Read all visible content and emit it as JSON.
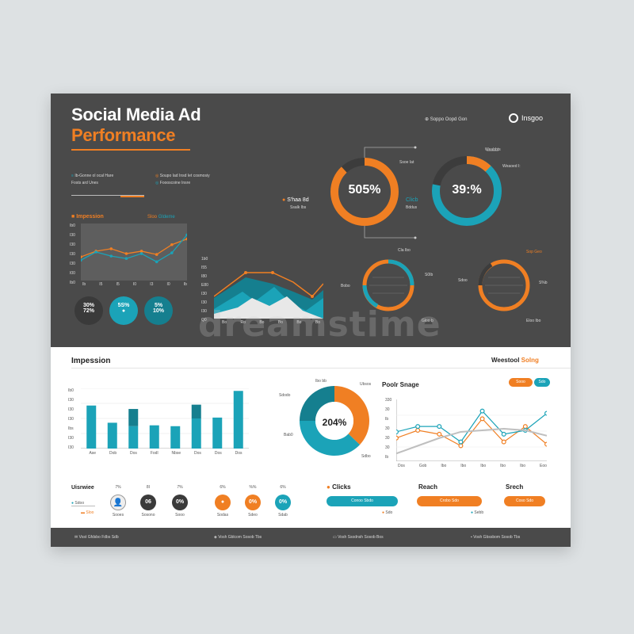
{
  "header": {
    "title_line1": "Social Media Ad",
    "title_line2": "Performance",
    "desc_left_1": "Ib-Gonne ol ocal Hare",
    "desc_left_2": "Fosts ard Unes",
    "desc_right_1": "Soupo Iad Insd Iet cosmosiy",
    "desc_right_2": "Foooscoine Insre",
    "top_link": "Soppo Oopd Gon",
    "logo_text": "Insgoo"
  },
  "top_left_chart": {
    "title": "Impession",
    "legend_a": "Sloo",
    "legend_b": "Gldeme",
    "y_ticks": [
      "Ib0",
      "I30",
      "I30",
      "I30",
      "I30",
      "I00",
      "Ib0"
    ],
    "x_ticks": [
      "Ib",
      "I5",
      "I5",
      "I0",
      "I3",
      "I0",
      "Ib"
    ],
    "chart_data": {
      "type": "line",
      "series": [
        {
          "name": "Sloo",
          "color": "#f07f23",
          "values": [
            29,
            36,
            39,
            33,
            36,
            32,
            44,
            51
          ]
        },
        {
          "name": "Gldeme",
          "color": "#1ba3b8",
          "values": [
            25,
            35,
            30,
            27,
            33,
            23,
            34,
            56
          ]
        }
      ],
      "ylim": [
        0,
        70
      ]
    }
  },
  "stats_circles": [
    {
      "line1": "30%",
      "line2": "72%",
      "color": "#3a3a3a"
    },
    {
      "line1": "5S%",
      "line2": "●",
      "color": "#1ba3b8"
    },
    {
      "line1": "5%",
      "line2": "10%",
      "color": "#1b7f8c"
    }
  ],
  "area_chart": {
    "y_ticks": [
      "1b0",
      "I55",
      "I80",
      "E80",
      "I30",
      "I30",
      "I30",
      "Q0"
    ],
    "x_ticks": [
      "Bo",
      "Ro",
      "Bo",
      "Bo",
      "Bo",
      "Bo"
    ]
  },
  "donut_a": {
    "value": "505%",
    "label_left": "S'haa 8d",
    "label_left_sub": "Ssalk Ibs",
    "label_top": "Ssoe Iat",
    "label_right": "Clicb",
    "label_right_sub": "Bddus",
    "color": "#f07f23",
    "fraction": 0.88
  },
  "donut_b": {
    "value": "39:%",
    "label_top": "Weabbts",
    "label_right": "Weaoed I:",
    "color": "#1ba3b8",
    "fraction": 0.78
  },
  "ring_c": {
    "label_top": "Cla Ibo",
    "label_left": "Bobo",
    "label_right": "S0Ib",
    "label_bottom": "Gloo b",
    "color": "#f07f23"
  },
  "ring_d": {
    "label_top": "Sop Geo",
    "label_left": "Sdoo",
    "label_right": "S%b",
    "label_bottom": "Eloo Ibo",
    "color": "#f07f23"
  },
  "watermark": "dreamstime",
  "impression_section": {
    "title": "Impession",
    "right_title": "Weestool",
    "right_title_accent": "Solng",
    "y_ticks": [
      "Ib0",
      "I30",
      "I30",
      "I30",
      "Ibs",
      "I30",
      "I30"
    ],
    "x_ticks": [
      "Ase",
      "Dob",
      "Dos",
      "Fodl",
      "Nbse",
      "Dos",
      "Dos",
      "Dos"
    ],
    "chart_data": {
      "type": "bar",
      "categories": [
        "Ase",
        "Dob",
        "Dos",
        "Fodl",
        "Nbse",
        "Dos",
        "Dos",
        "Dos"
      ],
      "series": [
        {
          "name": "base",
          "color": "#1ba3b8",
          "values": [
            50,
            30,
            26,
            27,
            26,
            35,
            36,
            67
          ]
        },
        {
          "name": "top",
          "color": "#157f8f",
          "values": [
            0,
            0,
            20,
            0,
            0,
            16,
            0,
            0
          ]
        }
      ],
      "ylim": [
        0,
        70
      ]
    }
  },
  "donut_big": {
    "value": "204%",
    "labels": [
      "Ibo bb",
      "Ubsos",
      "Sdodo",
      "Bab0",
      "Sdbo"
    ],
    "chart_data": {
      "type": "pie",
      "segments": [
        {
          "color": "#f07f23",
          "value": 37
        },
        {
          "color": "#1ba3b8",
          "value": 38
        },
        {
          "color": "#157f8f",
          "value": 25
        }
      ]
    }
  },
  "post_chart": {
    "title": "Poolr Snage",
    "chip_a": "Sooo",
    "chip_b": "Sdo",
    "y_ticks": [
      "330",
      "30",
      "Ib",
      "30",
      "30",
      "30",
      "Ib"
    ],
    "x_ticks": [
      "Dos",
      "Gob",
      "Ibo",
      "Ibo",
      "Ibo",
      "Ibo",
      "Ibo",
      "Eoo"
    ],
    "chart_data": {
      "type": "line",
      "series": [
        {
          "name": "Sooo",
          "color": "#f07f23",
          "values": [
            30,
            40,
            35,
            20,
            55,
            25,
            45,
            22
          ]
        },
        {
          "name": "Sdo",
          "color": "#1ba3b8",
          "values": [
            38,
            45,
            45,
            25,
            65,
            35,
            40,
            62
          ]
        },
        {
          "name": "trend",
          "color": "#bfbfbf",
          "values": [
            10,
            20,
            30,
            38,
            40,
            42,
            40,
            33
          ]
        }
      ],
      "ylim": [
        0,
        80
      ]
    }
  },
  "engagement": {
    "title": "Uisrwiee",
    "sub": "Sdoo",
    "items": [
      {
        "top": "7%",
        "value": "",
        "label": "Sooes",
        "color": "#ffffff",
        "kind": "avatar"
      },
      {
        "top": "8I",
        "value": "06",
        "label": "Sosono",
        "color": "#3a3a3a",
        "kind": "circle"
      },
      {
        "top": "7%",
        "value": "0%",
        "label": "Sooo",
        "color": "#3a3a3a",
        "kind": "circle"
      },
      {
        "top": "6%",
        "value": "●",
        "label": "Sodas",
        "color": "#f07f23",
        "kind": "circle"
      },
      {
        "top": "%%",
        "value": "0%",
        "label": "Sdeo",
        "color": "#f07f23",
        "kind": "circle"
      },
      {
        "top": "6%",
        "value": "0%",
        "label": "Sdab",
        "color": "#1ba3b8",
        "kind": "circle"
      }
    ],
    "legend": "Sloo"
  },
  "metrics": [
    {
      "title": "Clicks",
      "pill": "Conoo Sbdo",
      "pill_color": "#1ba3b8",
      "sub": "Sdo",
      "sub_dot": "#f07f23"
    },
    {
      "title": "Reach",
      "pill": "Crobo Sdo",
      "pill_color": "#f07f23",
      "sub": "Sebb",
      "sub_dot": "#1ba3b8"
    },
    {
      "title": "Srech",
      "pill": "Coso Sdo",
      "pill_color": "#f07f23",
      "sub": "",
      "sub_dot": ""
    }
  ],
  "footer": {
    "item1": "Vost Gfdsbo Fdbs Sdb",
    "item2": "Vosh Gblcom Sosob Tbs",
    "item3": "Vosh Ssodnsh Sosob Bos",
    "item4": "Vosh Gbssbom Sosob Tbs"
  },
  "colors": {
    "orange": "#f07f23",
    "teal": "#1ba3b8",
    "dark_teal": "#157f8f",
    "panel": "#4a4a4a"
  }
}
